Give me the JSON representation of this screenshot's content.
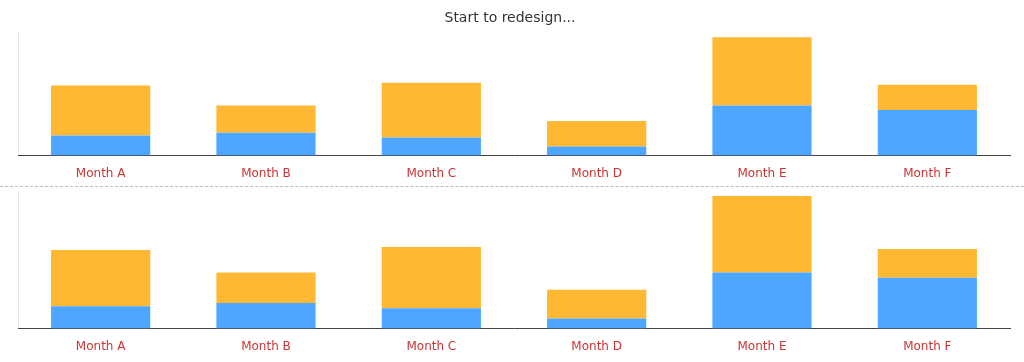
{
  "chart_data": [
    {
      "type": "bar",
      "title": "Start to redesign...",
      "stacked": true,
      "categories": [
        "Month A",
        "Month B",
        "Month C",
        "Month D",
        "Month E",
        "Month F"
      ],
      "series": [
        {
          "color": "#4da6ff",
          "values": [
            22,
            25,
            20,
            10,
            55,
            50
          ]
        },
        {
          "color": "#ffb833",
          "values": [
            55,
            30,
            60,
            28,
            75,
            28
          ]
        }
      ],
      "ylim": [
        0,
        135
      ],
      "grid": false,
      "tick_labels": "x"
    },
    {
      "type": "bar",
      "stacked": true,
      "categories": [
        "Month A",
        "Month B",
        "Month C",
        "Month D",
        "Month E",
        "Month F"
      ],
      "series": [
        {
          "color": "#4da6ff",
          "values": [
            22,
            25,
            20,
            10,
            55,
            50
          ]
        },
        {
          "color": "#ffb833",
          "values": [
            55,
            30,
            60,
            28,
            75,
            28
          ]
        }
      ],
      "ylim": [
        0,
        135
      ],
      "grid": false,
      "tick_labels": "x"
    }
  ]
}
